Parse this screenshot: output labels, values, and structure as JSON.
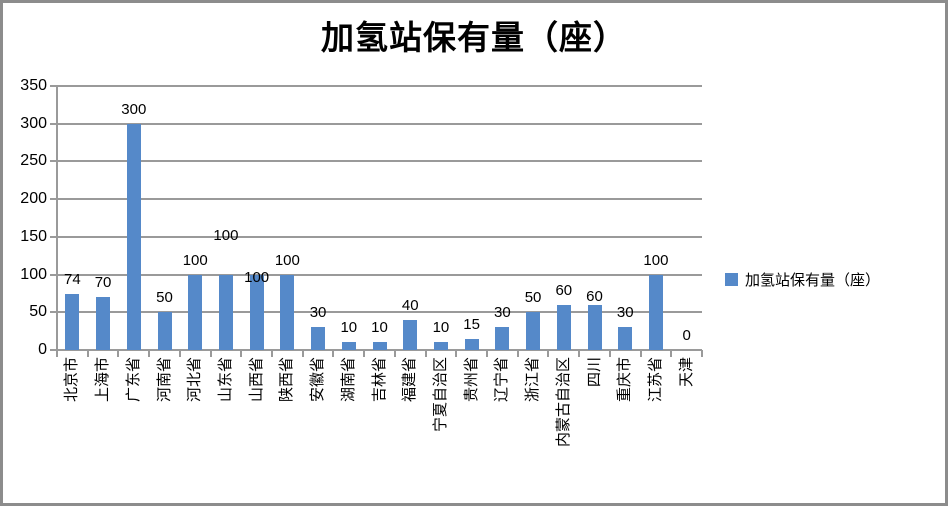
{
  "chart_data": {
    "type": "bar",
    "title": "加氢站保有量（座）",
    "series_name": "加氢站保有量（座）",
    "categories": [
      "北京市",
      "上海市",
      "广东省",
      "河南省",
      "河北省",
      "山东省",
      "山西省",
      "陕西省",
      "安徽省",
      "湖南省",
      "吉林省",
      "福建省",
      "宁夏自治区",
      "贵州省",
      "辽宁省",
      "浙江省",
      "内蒙古自治区",
      "四川",
      "重庆市",
      "江苏省",
      "天津"
    ],
    "values": [
      74,
      70,
      300,
      50,
      100,
      100,
      100,
      100,
      30,
      10,
      10,
      40,
      10,
      15,
      30,
      50,
      60,
      60,
      30,
      100,
      0
    ],
    "xlabel": "",
    "ylabel": "",
    "ylim": [
      0,
      350
    ],
    "yticks": [
      0,
      50,
      100,
      150,
      200,
      250,
      300,
      350
    ],
    "grid": "horizontal",
    "data_labels": true,
    "legend_position": "right-middle",
    "bar_color": "#5589C9",
    "gridline_color": "#9A9A9A",
    "frame_border_color": "#8C8C8C",
    "label_stagger": {
      "5": -25,
      "6": 17,
      "17": 6
    }
  }
}
